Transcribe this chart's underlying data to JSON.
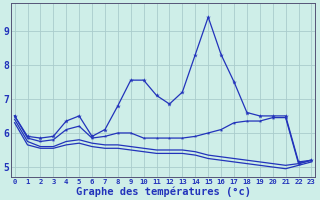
{
  "title": "Graphe des températures (°c)",
  "background_color": "#ceeee8",
  "grid_color": "#aacccc",
  "line_color": "#2233bb",
  "x_labels": [
    "0",
    "1",
    "2",
    "3",
    "4",
    "5",
    "6",
    "7",
    "8",
    "9",
    "10",
    "11",
    "12",
    "13",
    "14",
    "15",
    "16",
    "17",
    "18",
    "19",
    "20",
    "21",
    "22",
    "23"
  ],
  "hours": [
    0,
    1,
    2,
    3,
    4,
    5,
    6,
    7,
    8,
    9,
    10,
    11,
    12,
    13,
    14,
    15,
    16,
    17,
    18,
    19,
    20,
    21,
    22,
    23
  ],
  "line1": [
    6.5,
    5.9,
    5.85,
    5.9,
    6.35,
    6.5,
    5.9,
    6.1,
    6.8,
    7.55,
    7.55,
    7.1,
    6.85,
    7.2,
    8.3,
    9.4,
    8.3,
    7.5,
    6.6,
    6.5,
    6.5,
    6.5,
    5.15,
    5.2
  ],
  "line2": [
    6.5,
    5.85,
    5.75,
    5.8,
    6.1,
    6.2,
    5.85,
    5.9,
    6.0,
    6.0,
    5.85,
    5.85,
    5.85,
    5.85,
    5.9,
    6.0,
    6.1,
    6.3,
    6.35,
    6.35,
    6.45,
    6.45,
    5.1,
    5.2
  ],
  "line3": [
    6.4,
    5.75,
    5.6,
    5.6,
    5.75,
    5.8,
    5.7,
    5.65,
    5.65,
    5.6,
    5.55,
    5.5,
    5.5,
    5.5,
    5.45,
    5.35,
    5.3,
    5.25,
    5.2,
    5.15,
    5.1,
    5.05,
    5.1,
    5.2
  ],
  "line4": [
    6.3,
    5.65,
    5.55,
    5.55,
    5.65,
    5.7,
    5.6,
    5.55,
    5.55,
    5.5,
    5.45,
    5.4,
    5.4,
    5.4,
    5.35,
    5.25,
    5.2,
    5.15,
    5.1,
    5.05,
    5.0,
    4.95,
    5.05,
    5.15
  ],
  "ylim": [
    4.7,
    9.8
  ],
  "yticks": [
    5,
    6,
    7,
    8,
    9
  ]
}
